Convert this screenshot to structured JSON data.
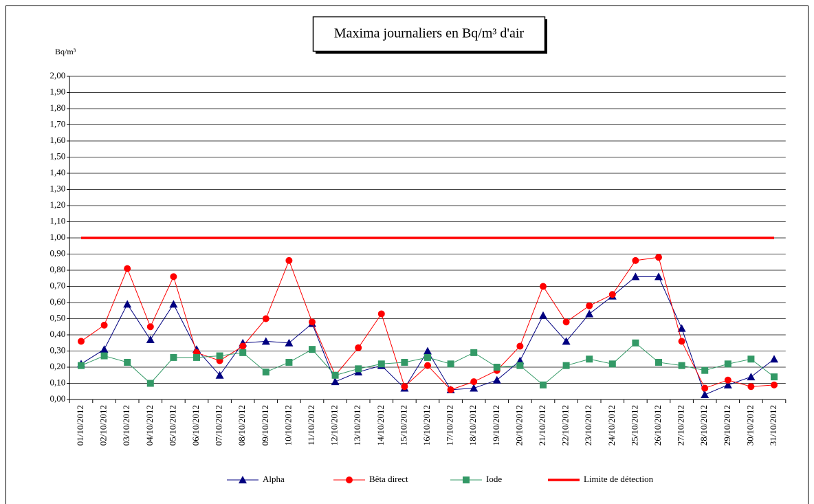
{
  "chart_data": {
    "type": "line",
    "title": "Maxima journaliers en Bq/m³ d'air",
    "y_label": "Bq/m³",
    "categories": [
      "01/10/2012",
      "02/10/2012",
      "03/10/2012",
      "04/10/2012",
      "05/10/2012",
      "06/10/2012",
      "07/10/2012",
      "08/10/2012",
      "09/10/2012",
      "10/10/2012",
      "11/10/2012",
      "12/10/2012",
      "13/10/2012",
      "14/10/2012",
      "15/10/2012",
      "16/10/2012",
      "17/10/2012",
      "18/10/2012",
      "19/10/2012",
      "20/10/2012",
      "21/10/2012",
      "22/10/2012",
      "23/10/2012",
      "24/10/2012",
      "25/10/2012",
      "26/10/2012",
      "27/10/2012",
      "28/10/2012",
      "29/10/2012",
      "30/10/2012",
      "31/10/2012"
    ],
    "series": [
      {
        "name": "Alpha",
        "color": "#000080",
        "marker": "triangle",
        "width": 1,
        "values": [
          0.22,
          0.31,
          0.59,
          0.37,
          0.59,
          0.31,
          0.15,
          0.35,
          0.36,
          0.35,
          0.47,
          0.11,
          0.17,
          0.21,
          0.07,
          0.3,
          0.06,
          0.07,
          0.12,
          0.24,
          0.52,
          0.36,
          0.53,
          0.64,
          0.76,
          0.76,
          0.44,
          0.03,
          0.09,
          0.14,
          0.25
        ]
      },
      {
        "name": "Bêta direct",
        "color": "#ff0000",
        "marker": "circle",
        "width": 1,
        "values": [
          0.36,
          0.46,
          0.81,
          0.45,
          0.76,
          0.29,
          0.24,
          0.33,
          0.5,
          0.86,
          0.48,
          0.15,
          0.32,
          0.53,
          0.08,
          0.21,
          0.06,
          0.11,
          0.18,
          0.33,
          0.7,
          0.48,
          0.58,
          0.65,
          0.86,
          0.88,
          0.36,
          0.07,
          0.12,
          0.08,
          0.09
        ]
      },
      {
        "name": "Iode",
        "color": "#339966",
        "marker": "square",
        "width": 1,
        "values": [
          0.21,
          0.27,
          0.23,
          0.1,
          0.26,
          0.26,
          0.27,
          0.29,
          0.17,
          0.23,
          0.31,
          0.15,
          0.19,
          0.22,
          0.23,
          0.26,
          0.22,
          0.29,
          0.2,
          0.21,
          0.09,
          0.21,
          0.25,
          0.22,
          0.35,
          0.23,
          0.21,
          0.18,
          0.22,
          0.25,
          0.14
        ]
      },
      {
        "name": "Limite de détection",
        "color": "#ff0000",
        "marker": "none",
        "width": 3.5,
        "values": [
          1,
          1,
          1,
          1,
          1,
          1,
          1,
          1,
          1,
          1,
          1,
          1,
          1,
          1,
          1,
          1,
          1,
          1,
          1,
          1,
          1,
          1,
          1,
          1,
          1,
          1,
          1,
          1,
          1,
          1,
          1
        ]
      }
    ],
    "ylim": [
      0,
      2
    ],
    "yticks": [
      {
        "value": 0,
        "label": "0,00"
      },
      {
        "value": 0.1,
        "label": "0,10"
      },
      {
        "value": 0.2,
        "label": "0,20"
      },
      {
        "value": 0.3,
        "label": "0,30"
      },
      {
        "value": 0.4,
        "label": "0,40"
      },
      {
        "value": 0.5,
        "label": "0,50"
      },
      {
        "value": 0.6,
        "label": "0,60"
      },
      {
        "value": 0.7,
        "label": "0,70"
      },
      {
        "value": 0.8,
        "label": "0,80"
      },
      {
        "value": 0.9,
        "label": "0,90"
      },
      {
        "value": 1,
        "label": "1,00"
      },
      {
        "value": 1.1,
        "label": "1,10"
      },
      {
        "value": 1.2,
        "label": "1,20"
      },
      {
        "value": 1.3,
        "label": "1,30"
      },
      {
        "value": 1.4,
        "label": "1,40"
      },
      {
        "value": 1.5,
        "label": "1,50"
      },
      {
        "value": 1.6,
        "label": "1,60"
      },
      {
        "value": 1.7,
        "label": "1,70"
      },
      {
        "value": 1.8,
        "label": "1,80"
      },
      {
        "value": 1.9,
        "label": "1,90"
      },
      {
        "value": 2,
        "label": "2,00"
      }
    ],
    "grid": true,
    "legend": "bottom"
  }
}
